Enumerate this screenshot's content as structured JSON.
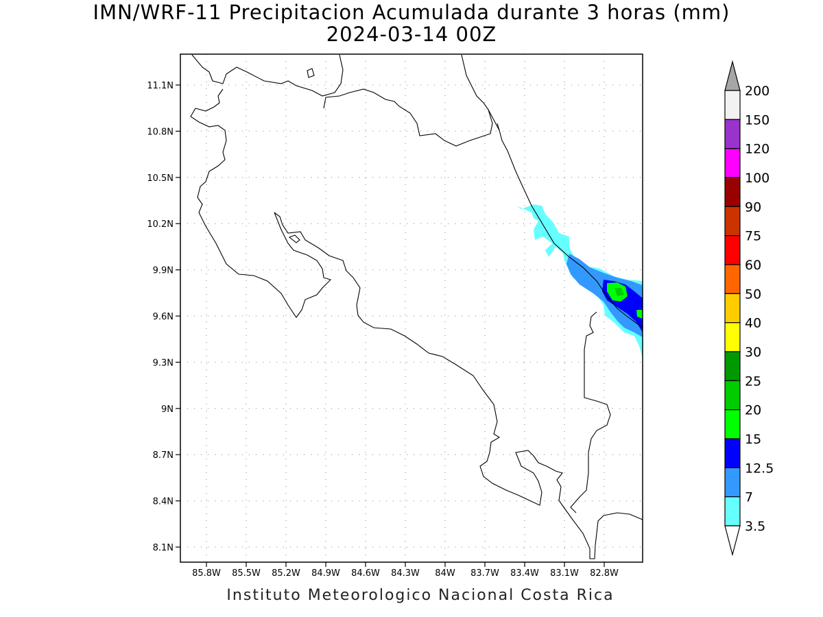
{
  "title": "IMN/WRF-11 Precipitacion Acumulada durante 3 horas (mm)",
  "date": "2024-03-14 00Z",
  "credit": "Instituto Meteorologico Nacional Costa Rica",
  "lat_labels": [
    "11.1N",
    "10.8N",
    "10.5N",
    "10.2N",
    "9.9N",
    "9.6N",
    "9.3N",
    "9N",
    "8.7N",
    "8.4N",
    "8.1N"
  ],
  "lon_labels": [
    "85.8W",
    "85.5W",
    "85.2W",
    "84.9W",
    "84.6W",
    "84.3W",
    "84W",
    "83.7W",
    "83.4W",
    "83.1W",
    "82.8W"
  ],
  "colorbar": {
    "labels": [
      "200",
      "150",
      "120",
      "100",
      "90",
      "75",
      "60",
      "50",
      "40",
      "30",
      "25",
      "20",
      "15",
      "12.5",
      "7",
      "3.5"
    ],
    "colors": [
      "#f2f2f2",
      "#9933cc",
      "#ff00ff",
      "#990000",
      "#cc3300",
      "#ff0000",
      "#ff6600",
      "#ffcc00",
      "#ffff00",
      "#009900",
      "#00cc00",
      "#00ff00",
      "#0000ff",
      "#3399ff",
      "#66ffff"
    ],
    "over_color": "#a6a6a6",
    "under_color": "#ffffff"
  }
}
